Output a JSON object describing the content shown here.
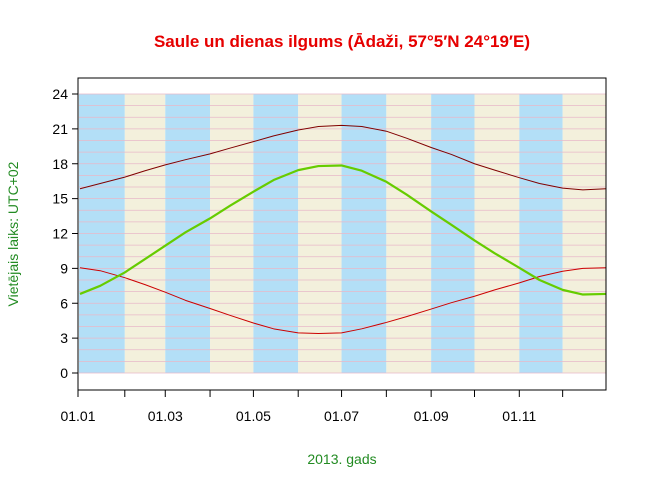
{
  "chart_data": {
    "type": "line",
    "title": "Saule un dienas ilgums (Ādaži, 57°5′N 24°19′E)",
    "xlabel": "2013. gads",
    "ylabel": "Vietējais laiks: UTC+02",
    "x_axis": {
      "unit": "day_of_year",
      "range": [
        1,
        365
      ],
      "tick_labels": [
        "01.01",
        "01.03",
        "01.05",
        "01.07",
        "01.09",
        "01.11"
      ],
      "tick_days": [
        1,
        32,
        60,
        91,
        121,
        152,
        182,
        213,
        244,
        274,
        305,
        335
      ]
    },
    "y_axis": {
      "range": [
        0,
        24
      ],
      "tick_values": [
        0,
        3,
        6,
        9,
        12,
        15,
        18,
        21,
        24
      ]
    },
    "month_start_days": [
      1,
      32,
      60,
      91,
      121,
      152,
      182,
      213,
      244,
      274,
      305,
      335,
      366
    ],
    "grid": "horizontal minor lines every hour",
    "colors": {
      "title": "#e60000",
      "axis_label": "#228b22",
      "band_light_blue": "#b3dff7",
      "band_beige": "#f3f0dc",
      "grid": "#e8b8c8",
      "sunrise": "#cc0000",
      "sunset": "#800000",
      "day_length": "#66cc00"
    },
    "series": [
      {
        "key": "sunset",
        "x": [
          1,
          15,
          32,
          46,
          60,
          74,
          91,
          105,
          121,
          135,
          152,
          166,
          182,
          196,
          213,
          227,
          244,
          258,
          274,
          288,
          305,
          319,
          335,
          349,
          365
        ],
        "y": [
          15.85,
          16.3,
          16.85,
          17.4,
          17.9,
          18.35,
          18.85,
          19.35,
          19.9,
          20.4,
          20.9,
          21.2,
          21.3,
          21.2,
          20.8,
          20.2,
          19.4,
          18.8,
          18.0,
          17.45,
          16.8,
          16.3,
          15.9,
          15.75,
          15.85
        ]
      },
      {
        "key": "sunrise",
        "x": [
          1,
          15,
          32,
          46,
          60,
          74,
          91,
          105,
          121,
          135,
          152,
          166,
          182,
          196,
          213,
          227,
          244,
          258,
          274,
          288,
          305,
          319,
          335,
          349,
          365
        ],
        "y": [
          9.05,
          8.8,
          8.2,
          7.6,
          6.95,
          6.25,
          5.55,
          4.95,
          4.3,
          3.8,
          3.45,
          3.4,
          3.45,
          3.8,
          4.35,
          4.85,
          5.5,
          6.05,
          6.6,
          7.15,
          7.75,
          8.3,
          8.75,
          9.0,
          9.05
        ]
      },
      {
        "key": "day_length",
        "x": [
          1,
          15,
          32,
          46,
          60,
          74,
          91,
          105,
          121,
          135,
          152,
          166,
          182,
          196,
          213,
          227,
          244,
          258,
          274,
          288,
          305,
          319,
          335,
          349,
          365
        ],
        "y": [
          6.8,
          7.5,
          8.65,
          9.8,
          10.95,
          12.1,
          13.3,
          14.4,
          15.6,
          16.6,
          17.45,
          17.8,
          17.85,
          17.4,
          16.45,
          15.35,
          13.9,
          12.75,
          11.4,
          10.3,
          9.05,
          8.0,
          7.15,
          6.75,
          6.8
        ]
      }
    ]
  }
}
